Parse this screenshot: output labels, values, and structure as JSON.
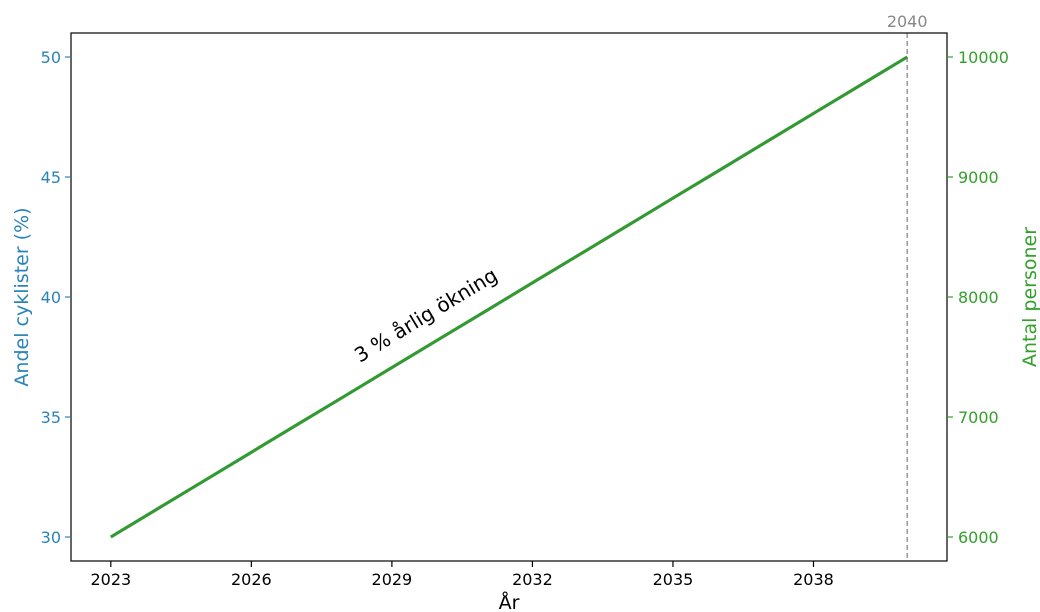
{
  "chart_data": {
    "type": "line",
    "x": [
      2023,
      2024,
      2025,
      2026,
      2027,
      2028,
      2029,
      2030,
      2031,
      2032,
      2033,
      2034,
      2035,
      2036,
      2037,
      2038,
      2039,
      2040
    ],
    "xlabel": "År",
    "xticks": [
      "2023",
      "2026",
      "2029",
      "2032",
      "2035",
      "2038"
    ],
    "xlim": [
      2022.15,
      2040.85
    ],
    "ylabel_left": "Andel cyklister (%)",
    "ylim_left": [
      29,
      51
    ],
    "yticks_left": [
      30,
      35,
      40,
      45,
      50
    ],
    "ylabel_right": "Antal personer",
    "ylim_right": [
      5800,
      10200
    ],
    "yticks_right": [
      6000,
      7000,
      8000,
      9000,
      10000
    ],
    "series": [
      {
        "axis": "left",
        "values": [
          30.0,
          31.18,
          32.35,
          33.53,
          34.71,
          35.88,
          37.06,
          38.24,
          39.41,
          40.59,
          41.76,
          42.94,
          44.12,
          45.29,
          46.47,
          47.65,
          48.82,
          50.0
        ],
        "color": "#3a8fc0"
      },
      {
        "axis": "right",
        "values": [
          6000,
          6235,
          6471,
          6706,
          6941,
          7176,
          7412,
          7647,
          7882,
          8118,
          8353,
          8588,
          8824,
          9059,
          9294,
          9529,
          9765,
          10000
        ],
        "color": "#3aa23a"
      }
    ],
    "vline": {
      "x": 2040,
      "label": "2040",
      "color": "#888888"
    },
    "annotation": {
      "text": "3 % årlig ökning",
      "x": 2029.8,
      "y": 39.0
    },
    "grid": false
  },
  "colors": {
    "left_axis": "#2a84ba",
    "right_axis": "#33a02c",
    "line": "#339a33",
    "vline": "#888888"
  }
}
